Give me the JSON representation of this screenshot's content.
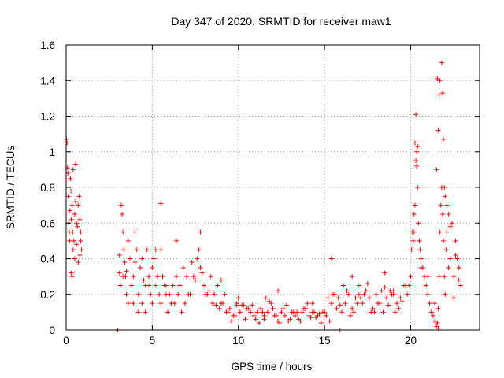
{
  "chart_data": {
    "type": "scatter",
    "title": "Day 347 of 2020, SRMTID for receiver maw1",
    "xlabel": "GPS time / hours",
    "ylabel": "SRMTID / TECUs",
    "xlim": [
      0,
      24
    ],
    "ylim": [
      0,
      1.6
    ],
    "xticks": [
      0,
      5,
      10,
      15,
      20
    ],
    "yticks": [
      0,
      0.2,
      0.4,
      0.6,
      0.8,
      1,
      1.2,
      1.4,
      1.6
    ],
    "ytick_labels": [
      "0",
      "0.2",
      "0.4",
      "0.6",
      "0.8",
      "1",
      "1.2",
      "1.4",
      "1.6"
    ],
    "grid": true,
    "marker": "+",
    "color": "#ff0000",
    "series": [
      {
        "name": "maw1",
        "x": [
          0.02,
          0.05,
          0.08,
          0.1,
          0.12,
          0.15,
          0.18,
          0.2,
          0.22,
          0.25,
          0.28,
          0.3,
          0.35,
          0.38,
          0.4,
          0.45,
          0.5,
          0.55,
          0.6,
          0.65,
          0.7,
          0.75,
          0.8,
          0.85,
          0.9,
          0.3,
          0.35,
          0.5,
          0.6,
          0.7,
          0.8,
          0.85,
          0.4,
          0.55,
          3.1,
          3.2,
          3.25,
          3.3,
          3.35,
          3.4,
          3.45,
          3.5,
          3.6,
          3.7,
          3.8,
          3.9,
          4.0,
          4.1,
          4.2,
          4.3,
          4.4,
          4.5,
          4.6,
          4.7,
          4.8,
          4.9,
          5.0,
          5.1,
          5.2,
          5.3,
          5.4,
          5.5,
          5.6,
          5.7,
          5.8,
          5.9,
          6.0,
          6.2,
          6.4,
          6.6,
          6.8,
          7.0,
          7.2,
          7.4,
          7.6,
          7.8,
          8.0,
          8.2,
          8.4,
          8.6,
          8.8,
          9.0,
          3.3,
          3.5,
          3.9,
          4.2,
          4.6,
          5.0,
          5.3,
          5.5,
          6.1,
          6.5,
          6.9,
          7.3,
          7.7,
          8.1,
          8.5,
          8.9,
          3.15,
          3.6,
          4.0,
          4.4,
          4.8,
          5.2,
          5.8,
          6.3,
          6.7,
          7.1,
          7.5,
          7.9,
          8.3,
          8.7,
          3.1,
          5.5,
          6.4,
          7.8,
          3.0,
          9.1,
          9.3,
          9.5,
          9.7,
          9.9,
          10.1,
          10.3,
          10.5,
          10.7,
          10.9,
          11.1,
          11.3,
          11.5,
          11.7,
          11.9,
          12.1,
          12.3,
          12.5,
          12.7,
          12.9,
          13.1,
          13.3,
          13.5,
          13.7,
          13.9,
          14.1,
          14.3,
          14.5,
          14.7,
          14.9,
          9.2,
          9.6,
          10.0,
          10.4,
          10.8,
          11.2,
          11.6,
          12.0,
          12.4,
          12.8,
          13.2,
          13.6,
          14.0,
          14.4,
          14.8,
          9.4,
          9.8,
          10.2,
          10.6,
          11.0,
          11.4,
          11.8,
          12.2,
          12.6,
          13.0,
          13.4,
          13.8,
          14.2,
          14.6,
          9.0,
          9.9,
          11.5,
          12.3,
          14.3,
          15.0,
          15.2,
          15.4,
          15.6,
          15.8,
          16.0,
          16.2,
          16.4,
          16.6,
          16.8,
          17.0,
          17.2,
          17.4,
          17.6,
          17.8,
          18.0,
          18.2,
          18.4,
          18.6,
          18.8,
          19.0,
          19.2,
          19.4,
          19.6,
          19.8,
          15.1,
          15.5,
          15.9,
          16.3,
          16.7,
          17.1,
          17.5,
          17.9,
          18.3,
          18.7,
          19.1,
          19.5,
          19.9,
          15.3,
          15.7,
          16.1,
          16.5,
          16.9,
          17.3,
          17.7,
          18.1,
          18.5,
          18.9,
          19.3,
          19.7,
          15.4,
          16.6,
          17.0,
          18.5,
          19.0,
          15.9,
          20.0,
          20.05,
          20.1,
          20.15,
          20.2,
          20.25,
          20.3,
          20.35,
          20.4,
          20.45,
          20.5,
          20.55,
          20.6,
          20.7,
          20.8,
          20.9,
          21.0,
          21.1,
          21.2,
          21.3,
          21.4,
          21.5,
          21.55,
          21.6,
          21.65,
          21.7,
          21.75,
          21.8,
          21.85,
          21.9,
          21.95,
          22.0,
          22.05,
          22.1,
          22.2,
          22.3,
          22.4,
          22.5,
          22.6,
          22.7,
          22.8,
          22.9,
          20.25,
          20.3,
          20.35,
          20.4,
          21.5,
          21.6,
          21.7,
          21.8,
          21.85,
          21.9,
          21.95,
          22.0,
          22.1,
          22.3,
          22.6,
          20.2,
          20.6,
          21.0,
          21.4,
          21.6,
          22.2,
          22.5,
          22.8,
          21.55,
          21.65
        ],
        "y": [
          1.07,
          1.05,
          0.91,
          0.88,
          0.75,
          0.6,
          0.55,
          0.5,
          0.67,
          0.85,
          0.78,
          0.62,
          0.7,
          0.55,
          0.45,
          0.5,
          0.65,
          0.72,
          0.6,
          0.58,
          0.7,
          0.75,
          0.62,
          0.55,
          0.45,
          0.32,
          0.3,
          0.4,
          0.48,
          0.38,
          0.42,
          0.5,
          0.9,
          0.93,
          0.42,
          0.7,
          0.65,
          0.55,
          0.45,
          0.38,
          0.3,
          0.33,
          0.5,
          0.4,
          0.25,
          0.3,
          0.55,
          0.45,
          0.2,
          0.35,
          0.4,
          0.28,
          0.25,
          0.45,
          0.3,
          0.2,
          0.35,
          0.4,
          0.25,
          0.3,
          0.2,
          0.15,
          0.3,
          0.25,
          0.2,
          0.1,
          0.2,
          0.25,
          0.3,
          0.25,
          0.35,
          0.3,
          0.2,
          0.3,
          0.4,
          0.35,
          0.25,
          0.2,
          0.3,
          0.2,
          0.25,
          0.15,
          0.3,
          0.2,
          0.15,
          0.1,
          0.1,
          0.15,
          0.3,
          0.45,
          0.15,
          0.2,
          0.15,
          0.38,
          0.45,
          0.2,
          0.15,
          0.12,
          0.25,
          0.15,
          0.38,
          0.15,
          0.25,
          0.45,
          0.25,
          0.15,
          0.1,
          0.2,
          0.28,
          0.32,
          0.22,
          0.14,
          0.32,
          0.71,
          0.5,
          0.55,
          0.0,
          0.15,
          0.1,
          0.12,
          0.08,
          0.15,
          0.1,
          0.14,
          0.12,
          0.1,
          0.08,
          0.1,
          0.12,
          0.06,
          0.1,
          0.15,
          0.08,
          0.05,
          0.1,
          0.08,
          0.05,
          0.1,
          0.08,
          0.06,
          0.1,
          0.12,
          0.08,
          0.1,
          0.07,
          0.09,
          0.1,
          0.2,
          0.05,
          0.18,
          0.06,
          0.14,
          0.04,
          0.18,
          0.12,
          0.04,
          0.14,
          0.1,
          0.05,
          0.15,
          0.1,
          0.04,
          0.1,
          0.08,
          0.14,
          0.12,
          0.06,
          0.1,
          0.16,
          0.08,
          0.12,
          0.06,
          0.1,
          0.12,
          0.07,
          0.08,
          0.28,
          0.14,
          0.08,
          0.22,
          0.15,
          0.1,
          0.18,
          0.15,
          0.2,
          0.18,
          0.1,
          0.15,
          0.2,
          0.12,
          0.18,
          0.2,
          0.15,
          0.22,
          0.18,
          0.12,
          0.2,
          0.15,
          0.1,
          0.18,
          0.22,
          0.2,
          0.15,
          0.18,
          0.25,
          0.2,
          0.08,
          0.2,
          0.14,
          0.22,
          0.1,
          0.18,
          0.26,
          0.1,
          0.22,
          0.14,
          0.1,
          0.16,
          0.25,
          0.05,
          0.12,
          0.25,
          0.08,
          0.15,
          0.2,
          0.1,
          0.15,
          0.24,
          0.2,
          0.12,
          0.25,
          0.4,
          0.3,
          0.25,
          0.32,
          0.22,
          0.0,
          0.3,
          0.45,
          0.55,
          0.5,
          0.65,
          0.7,
          0.95,
          1.0,
          0.8,
          0.6,
          0.5,
          0.45,
          0.4,
          0.35,
          0.3,
          0.25,
          0.2,
          0.15,
          0.1,
          0.08,
          0.05,
          0.02,
          0.04,
          0.01,
          0.3,
          0.55,
          0.7,
          0.8,
          0.65,
          0.5,
          0.3,
          0.2,
          0.45,
          0.55,
          0.65,
          0.4,
          0.6,
          0.3,
          0.5,
          0.4,
          0.35,
          0.25,
          1.05,
          1.21,
          0.92,
          1.03,
          0.9,
          1.12,
          1.4,
          1.5,
          1.33,
          1.07,
          0.8,
          0.75,
          0.7,
          0.58,
          0.42,
          0.55,
          0.35,
          0.3,
          0.15,
          0.12,
          0.35,
          0.18,
          0.28,
          1.41,
          1.32
        ]
      }
    ]
  }
}
